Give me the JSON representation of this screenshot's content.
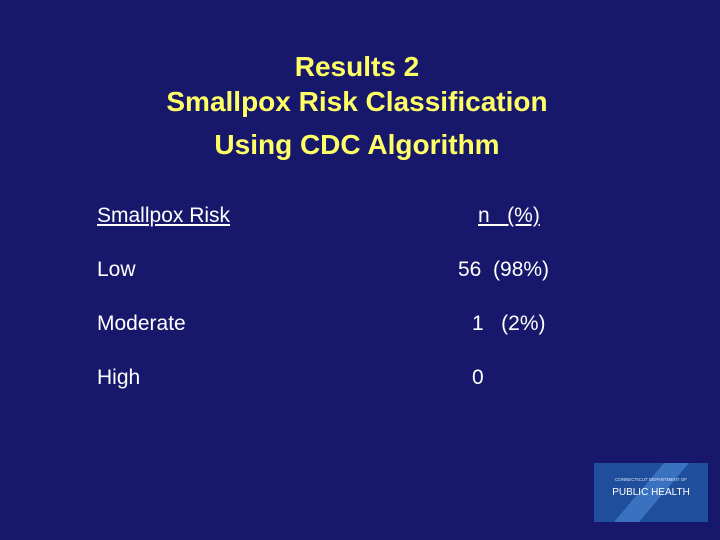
{
  "title": [
    "Results 2",
    "Smallpox Risk Classification",
    "Using CDC Algorithm"
  ],
  "table": {
    "header": [
      "Smallpox Risk",
      "n   (%)"
    ],
    "rows": [
      [
        "Low",
        "56  (98%)"
      ],
      [
        "Moderate",
        "1   (2%)"
      ],
      [
        "High",
        "0"
      ]
    ]
  },
  "logo": {
    "top_text": "CONNECTICUT DEPARTMENT OF",
    "name": "PUBLIC HEALTH"
  }
}
